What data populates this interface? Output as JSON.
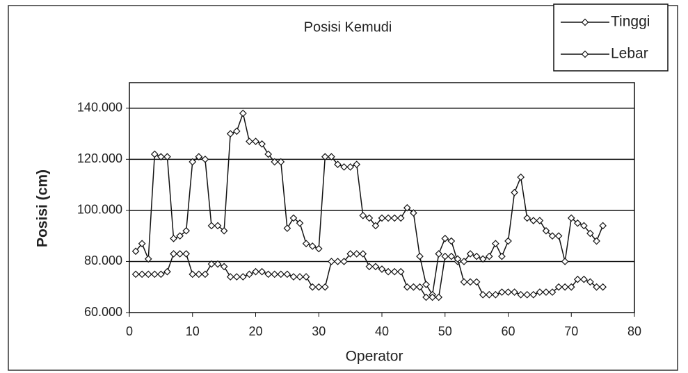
{
  "chart_data": {
    "type": "line",
    "title": "Posisi Kemudi",
    "x_label": "Operator",
    "y_label": "Posisi (cm)",
    "x": [
      1,
      2,
      3,
      4,
      5,
      6,
      7,
      8,
      9,
      10,
      11,
      12,
      13,
      14,
      15,
      16,
      17,
      18,
      19,
      20,
      21,
      22,
      23,
      24,
      25,
      26,
      27,
      28,
      29,
      30,
      31,
      32,
      33,
      34,
      35,
      36,
      37,
      38,
      39,
      40,
      41,
      42,
      43,
      44,
      45,
      46,
      47,
      48,
      49,
      50,
      51,
      52,
      53,
      54,
      55,
      56,
      57,
      58,
      59,
      60,
      61,
      62,
      63,
      64,
      65,
      66,
      67,
      68,
      69,
      70,
      71,
      72,
      73,
      74,
      75
    ],
    "series": [
      {
        "name": "Tinggi",
        "color": "#111111",
        "values": [
          84,
          87,
          81,
          122,
          121,
          121,
          89,
          90,
          92,
          119,
          121,
          120,
          94,
          94,
          92,
          130,
          131,
          138,
          127,
          127,
          126,
          122,
          119,
          119,
          93,
          97,
          95,
          87,
          86,
          85,
          121,
          121,
          118,
          117,
          117,
          118,
          98,
          97,
          94,
          97,
          97,
          97,
          97,
          101,
          99,
          82,
          71,
          67,
          83,
          89,
          88,
          80,
          80,
          83,
          82,
          81,
          82,
          87,
          82,
          88,
          107,
          113,
          97,
          96,
          96,
          92,
          90,
          90,
          80,
          97,
          95,
          94,
          91,
          88,
          94
        ]
      },
      {
        "name": "Lebar",
        "color": "#111111",
        "values": [
          75,
          75,
          75,
          75,
          75,
          76,
          83,
          83,
          83,
          75,
          75,
          75,
          79,
          79,
          78,
          74,
          74,
          74,
          75,
          76,
          76,
          75,
          75,
          75,
          75,
          74,
          74,
          74,
          70,
          70,
          70,
          80,
          80,
          80,
          83,
          83,
          83,
          78,
          78,
          77,
          76,
          76,
          76,
          70,
          70,
          70,
          66,
          66,
          66,
          82,
          82,
          81,
          72,
          72,
          72,
          67,
          67,
          67,
          68,
          68,
          68,
          67,
          67,
          67,
          68,
          68,
          68,
          70,
          70,
          70,
          73,
          73,
          72,
          70,
          70
        ]
      }
    ],
    "xlim": [
      0,
      80
    ],
    "xticks": [
      0,
      10,
      20,
      30,
      40,
      50,
      60,
      70,
      80
    ],
    "ylim": [
      60,
      150
    ],
    "yticks": [
      {
        "value": 60,
        "label": "60.000"
      },
      {
        "value": 80,
        "label": "80.000"
      },
      {
        "value": 100,
        "label": "100.000"
      },
      {
        "value": 120,
        "label": "120.000"
      },
      {
        "value": 140,
        "label": "140.000"
      }
    ],
    "grid": true,
    "legend": "top-right"
  }
}
